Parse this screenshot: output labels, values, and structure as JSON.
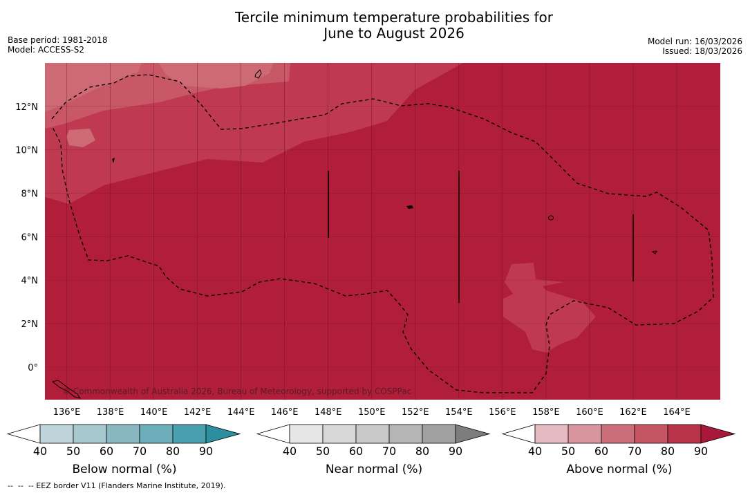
{
  "header": {
    "title_line1": "Tercile minimum temperature probabilities for",
    "title_line2": "June to August 2026",
    "base_period": "Base period: 1981-2018",
    "model": "Model: ACCESS-S2",
    "model_run": "Model run: 16/03/2026",
    "issued": "Issued: 18/03/2026"
  },
  "map": {
    "lon_range": [
      135,
      166
    ],
    "lat_range": [
      -1.5,
      14
    ],
    "lon_ticks": [
      {
        "value": 136,
        "label": "136°E"
      },
      {
        "value": 138,
        "label": "138°E"
      },
      {
        "value": 140,
        "label": "140°E"
      },
      {
        "value": 142,
        "label": "142°E"
      },
      {
        "value": 144,
        "label": "144°E"
      },
      {
        "value": 146,
        "label": "146°E"
      },
      {
        "value": 148,
        "label": "148°E"
      },
      {
        "value": 150,
        "label": "150°E"
      },
      {
        "value": 152,
        "label": "152°E"
      },
      {
        "value": 154,
        "label": "154°E"
      },
      {
        "value": 156,
        "label": "156°E"
      },
      {
        "value": 158,
        "label": "158°E"
      },
      {
        "value": 160,
        "label": "160°E"
      },
      {
        "value": 162,
        "label": "162°E"
      },
      {
        "value": 164,
        "label": "164°E"
      }
    ],
    "lat_ticks": [
      {
        "value": 12,
        "label": "12°N"
      },
      {
        "value": 10,
        "label": "10°N"
      },
      {
        "value": 8,
        "label": "8°N"
      },
      {
        "value": 6,
        "label": "6°N"
      },
      {
        "value": 4,
        "label": "4°N"
      },
      {
        "value": 2,
        "label": "2°N"
      },
      {
        "value": 0,
        "label": "0°"
      }
    ],
    "copyright": "© Commonwealth of Australia 2026, Bureau of Meteorology, supported by COSPPac",
    "colors": {
      "base": "#b01e3a",
      "band80": "#bf3a50",
      "band70": "#c85866",
      "band60": "#cd6a74",
      "grid": "#5a1020"
    }
  },
  "colorbars": [
    {
      "label": "Below normal (%)",
      "ticks": [
        "40",
        "50",
        "60",
        "70",
        "80",
        "90"
      ],
      "colors": [
        "#ffffff",
        "#bed4da",
        "#a7c8ce",
        "#8ab8c2",
        "#6badb8",
        "#4a9fae",
        "#2b8fa0"
      ]
    },
    {
      "label": "Near normal (%)",
      "ticks": [
        "40",
        "50",
        "60",
        "70",
        "80",
        "90"
      ],
      "colors": [
        "#ffffff",
        "#e6e6e6",
        "#d8d8d8",
        "#c9c9c9",
        "#b5b5b5",
        "#a0a0a0",
        "#7d7d7d"
      ]
    },
    {
      "label": "Above normal (%)",
      "ticks": [
        "40",
        "50",
        "60",
        "70",
        "80",
        "90"
      ],
      "colors": [
        "#ffffff",
        "#e5b9c0",
        "#d9959d",
        "#cc6f7a",
        "#c55563",
        "#b93349",
        "#a8183a"
      ]
    }
  ],
  "footer": {
    "eez_note": "--  --  -- EEZ border V11 (Flanders Marine Institute, 2019)."
  }
}
